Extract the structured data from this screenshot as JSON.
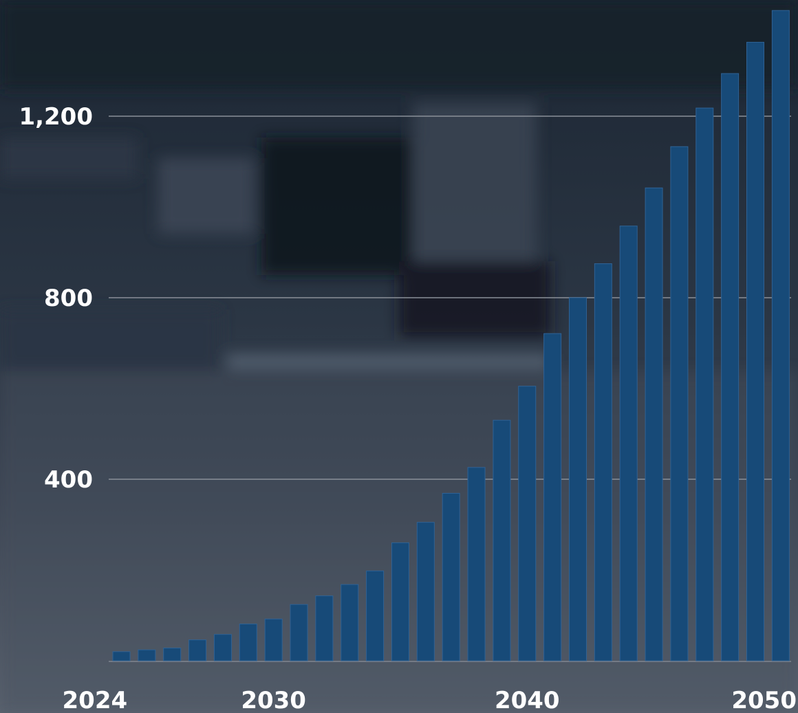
{
  "colors": {
    "bar_fill": "#174a78",
    "background_dark": "#1c2633",
    "background_light": "#5b6470",
    "text": "#ffffff",
    "grid": "#8a9099"
  },
  "background": "blurred dark-blue tinted industrial interior photo",
  "chart_data": {
    "type": "bar",
    "title": "",
    "xlabel": "",
    "ylabel": "",
    "grid": true,
    "legend": "none",
    "ylim": [
      0,
      1450
    ],
    "y_ticks": [
      {
        "value": 400,
        "label": "400"
      },
      {
        "value": 800,
        "label": "800"
      },
      {
        "value": 1200,
        "label": "1,200"
      }
    ],
    "x_ticks": [
      "2024",
      "2030",
      "2040",
      "2050"
    ],
    "categories": [
      "2024",
      "2025",
      "2026",
      "2027",
      "2028",
      "2029",
      "2030",
      "2031",
      "2032",
      "2033",
      "2034",
      "2035",
      "2036",
      "2037",
      "2038",
      "2039",
      "2040",
      "2041",
      "2042",
      "2043",
      "2044",
      "2045",
      "2046",
      "2047",
      "2048",
      "2049",
      "2050"
    ],
    "values": [
      20,
      24,
      28,
      46,
      58,
      81,
      92,
      124,
      143,
      168,
      198,
      260,
      305,
      369,
      426,
      530,
      605,
      721,
      800,
      875,
      958,
      1042,
      1133,
      1218,
      1294,
      1363,
      1433
    ]
  }
}
